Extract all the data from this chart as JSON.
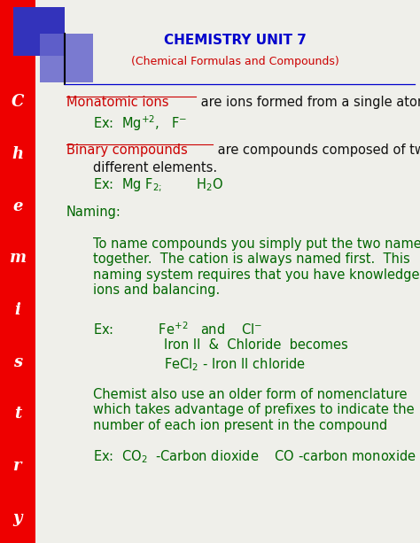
{
  "title_line1": "CHEMISTRY UNIT 7",
  "title_line2": "(Chemical Formulas and Compounds)",
  "title_color": "#0000CC",
  "subtitle_color": "#CC0000",
  "bg_color": "#EFEFEA",
  "red_bar_color": "#EE0000",
  "blue_box1_color": "#3333BB",
  "blue_box2_color": "#6666CC",
  "sidebar_letters": [
    "C",
    "h",
    "e",
    "m",
    "i",
    "s",
    "t",
    "r",
    "y"
  ],
  "body_text_color": "#006600",
  "red_text_color": "#CC0000",
  "black_text_color": "#111111",
  "fig_w": 4.74,
  "fig_h": 6.13,
  "dpi": 100
}
